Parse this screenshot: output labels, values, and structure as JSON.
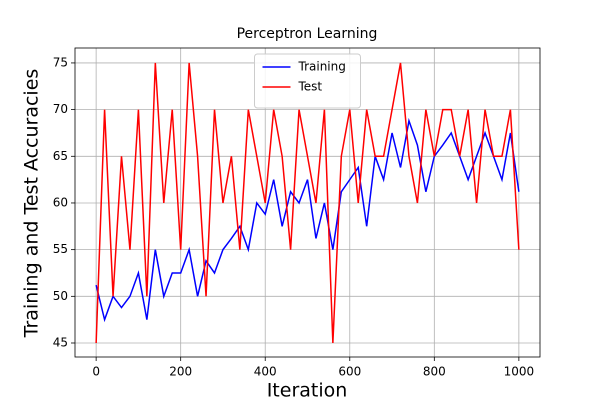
{
  "chart_data": {
    "type": "line",
    "title": "Perceptron Learning",
    "x_label": "Iteration",
    "y_label": "Training and Test Accuracies",
    "x": [
      0,
      20,
      40,
      60,
      80,
      100,
      120,
      140,
      160,
      180,
      200,
      220,
      240,
      260,
      280,
      300,
      320,
      340,
      360,
      380,
      400,
      420,
      440,
      460,
      480,
      500,
      520,
      540,
      560,
      580,
      600,
      620,
      640,
      660,
      680,
      700,
      720,
      740,
      760,
      780,
      800,
      820,
      840,
      860,
      880,
      900,
      920,
      940,
      960,
      980,
      1000
    ],
    "series": [
      {
        "name": "Training",
        "color": "#0000ff",
        "values": [
          51.2,
          47.5,
          50,
          48.8,
          50,
          52.5,
          47.5,
          55,
          50,
          52.5,
          52.5,
          55,
          50,
          53.8,
          52.5,
          55,
          56.2,
          57.5,
          55,
          60,
          58.8,
          62.5,
          57.5,
          61.2,
          60,
          62.5,
          56.2,
          60,
          55,
          61.2,
          62.5,
          63.8,
          57.5,
          65,
          62.5,
          67.5,
          63.8,
          68.8,
          66.2,
          61.2,
          65,
          66.2,
          67.5,
          65,
          62.5,
          65,
          67.5,
          65,
          62.5,
          67.5,
          61.2
        ]
      },
      {
        "name": "Test",
        "color": "#ff0000",
        "values": [
          45,
          70,
          50,
          65,
          55,
          70,
          50,
          75,
          60,
          70,
          55,
          75,
          65,
          50,
          70,
          60,
          65,
          55,
          70,
          65,
          60,
          70,
          65,
          55,
          70,
          65,
          60,
          70,
          45,
          65,
          70,
          60,
          70,
          65,
          65,
          70,
          75,
          65,
          60,
          70,
          65,
          70,
          70,
          65,
          70,
          60,
          70,
          65,
          65,
          70,
          55
        ]
      }
    ],
    "xlim": [
      -50,
      1050
    ],
    "ylim": [
      43.5,
      76.6
    ],
    "xticks": [
      0,
      200,
      400,
      600,
      800,
      1000
    ],
    "yticks": [
      45,
      50,
      55,
      60,
      65,
      70,
      75
    ],
    "grid": true,
    "legend": "upper center"
  }
}
